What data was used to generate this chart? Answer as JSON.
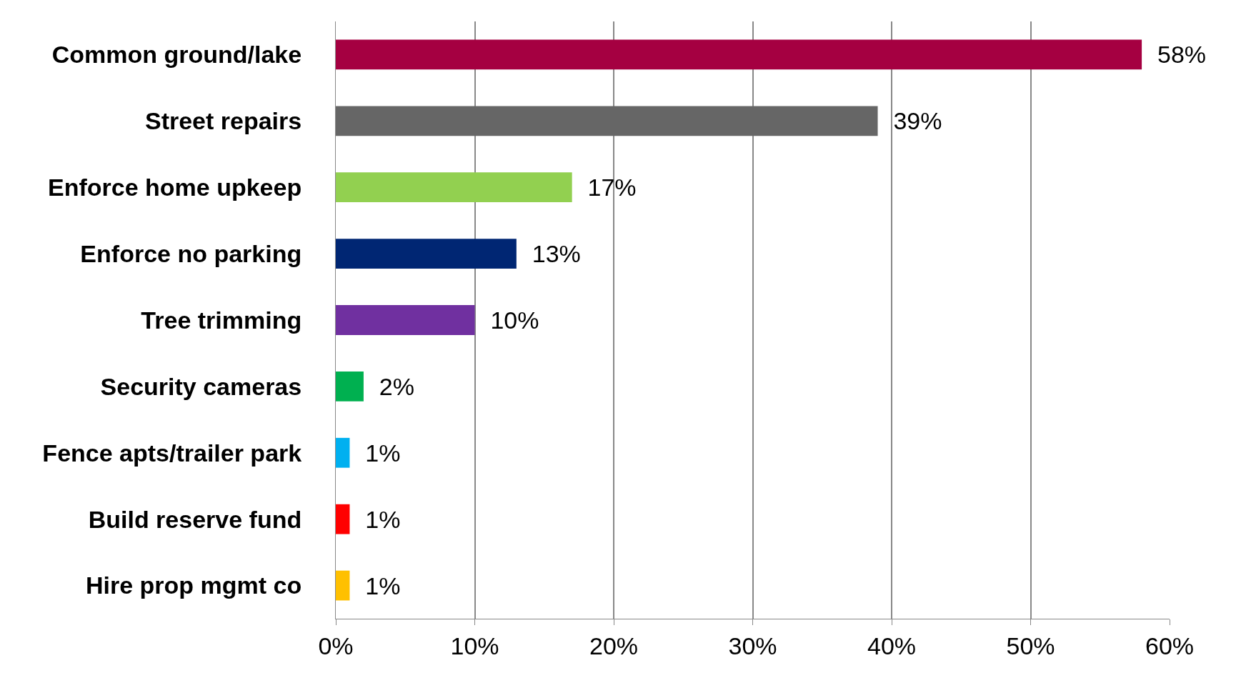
{
  "chart_data": {
    "type": "bar",
    "orientation": "horizontal",
    "categories": [
      "Common ground/lake",
      "Street repairs",
      "Enforce home upkeep",
      "Enforce no parking",
      "Tree trimming",
      "Security cameras",
      "Fence apts/trailer park",
      "Build reserve fund",
      "Hire prop mgmt co"
    ],
    "values": [
      58,
      39,
      17,
      13,
      10,
      2,
      1,
      1,
      1
    ],
    "value_labels": [
      "58%",
      "39%",
      "17%",
      "13%",
      "10%",
      "2%",
      "1%",
      "1%",
      "1%"
    ],
    "colors": [
      "#a50041",
      "#666666",
      "#92d050",
      "#002673",
      "#7030a0",
      "#00b050",
      "#00b0f0",
      "#ff0000",
      "#ffc000"
    ],
    "xlim": [
      0,
      60
    ],
    "xticks": [
      {
        "value": 0,
        "label": "0%"
      },
      {
        "value": 10,
        "label": "10%"
      },
      {
        "value": 20,
        "label": "20%"
      },
      {
        "value": 30,
        "label": "30%"
      },
      {
        "value": 40,
        "label": "40%"
      },
      {
        "value": 50,
        "label": "50%"
      },
      {
        "value": 60,
        "label": "60%"
      }
    ],
    "grid": "x"
  }
}
